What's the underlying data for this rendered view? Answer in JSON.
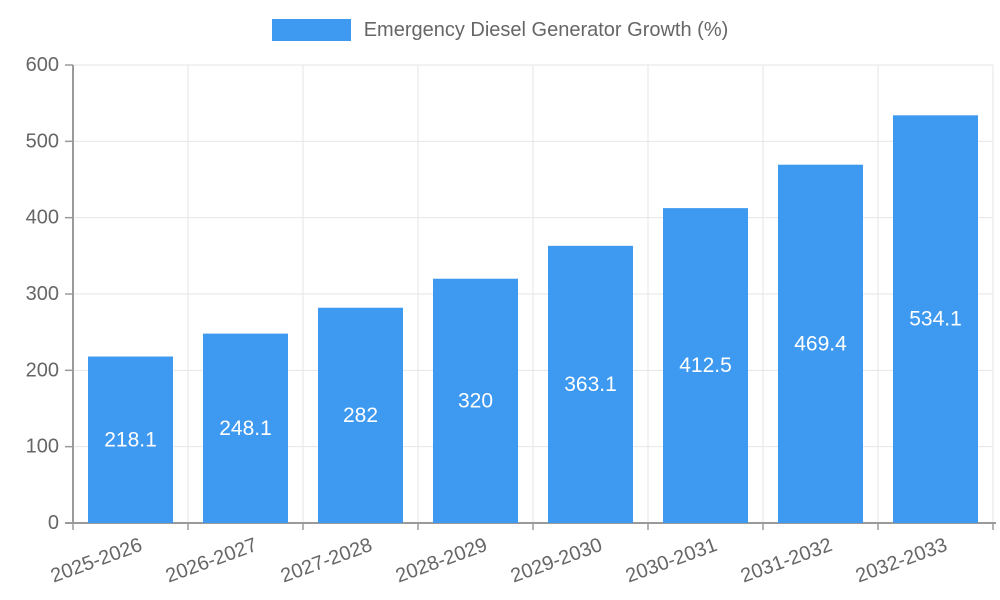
{
  "legend": {
    "label": "Emergency Diesel Generator Growth (%)"
  },
  "colors": {
    "bar": "#3e99f0",
    "axis_line": "#9a9a9a",
    "grid_line": "#e6e6e6",
    "tick_label": "#666666",
    "legend_text": "#666666",
    "value_label": "#ffffff",
    "background": "#ffffff"
  },
  "chart_data": {
    "type": "bar",
    "title": "Emergency Diesel Generator Growth (%)",
    "categories": [
      "2025-2026",
      "2026-2027",
      "2027-2028",
      "2028-2029",
      "2029-2030",
      "2030-2031",
      "2031-2032",
      "2032-2033"
    ],
    "values": [
      218.1,
      248.1,
      282,
      320,
      363.1,
      412.5,
      469.4,
      534.1
    ],
    "value_labels": [
      "218.1",
      "248.1",
      "282",
      "320",
      "363.1",
      "412.5",
      "469.4",
      "534.1"
    ],
    "xlabel": "",
    "ylabel": "",
    "ylim": [
      0,
      600
    ],
    "yticks": [
      0,
      100,
      200,
      300,
      400,
      500,
      600
    ],
    "grid": true,
    "legend_position": "top",
    "x_tick_rotation_deg": -20
  }
}
